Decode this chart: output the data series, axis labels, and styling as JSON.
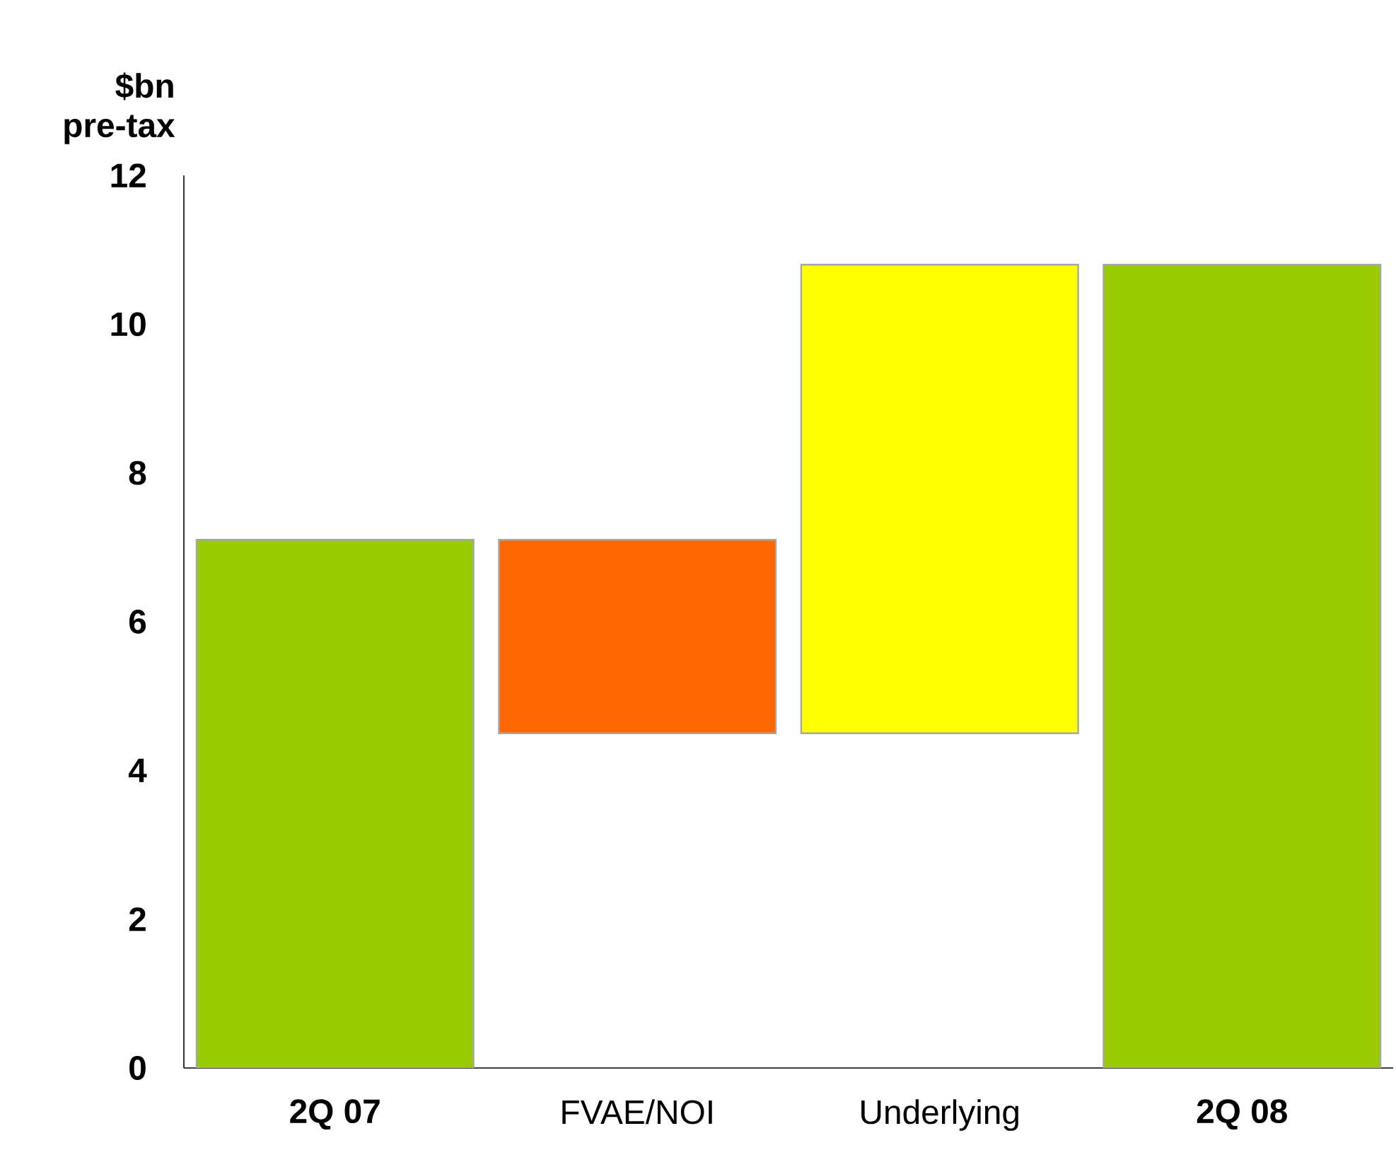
{
  "chart_data": {
    "type": "bar",
    "ylabel": "$bn pre-tax",
    "categories": [
      "2Q 07",
      "FVAE/NOI",
      "Underlying",
      "2Q 08"
    ],
    "values": [
      7.1,
      2.6,
      6.3,
      10.8
    ],
    "base": [
      0,
      4.5,
      4.5,
      0
    ],
    "colors": [
      "#99cc00",
      "#ff6600",
      "#ffff00",
      "#99cc00"
    ],
    "ylim": [
      0,
      12
    ],
    "yticks": [
      0,
      2,
      4,
      6,
      8,
      10,
      12
    ],
    "grid": false
  }
}
